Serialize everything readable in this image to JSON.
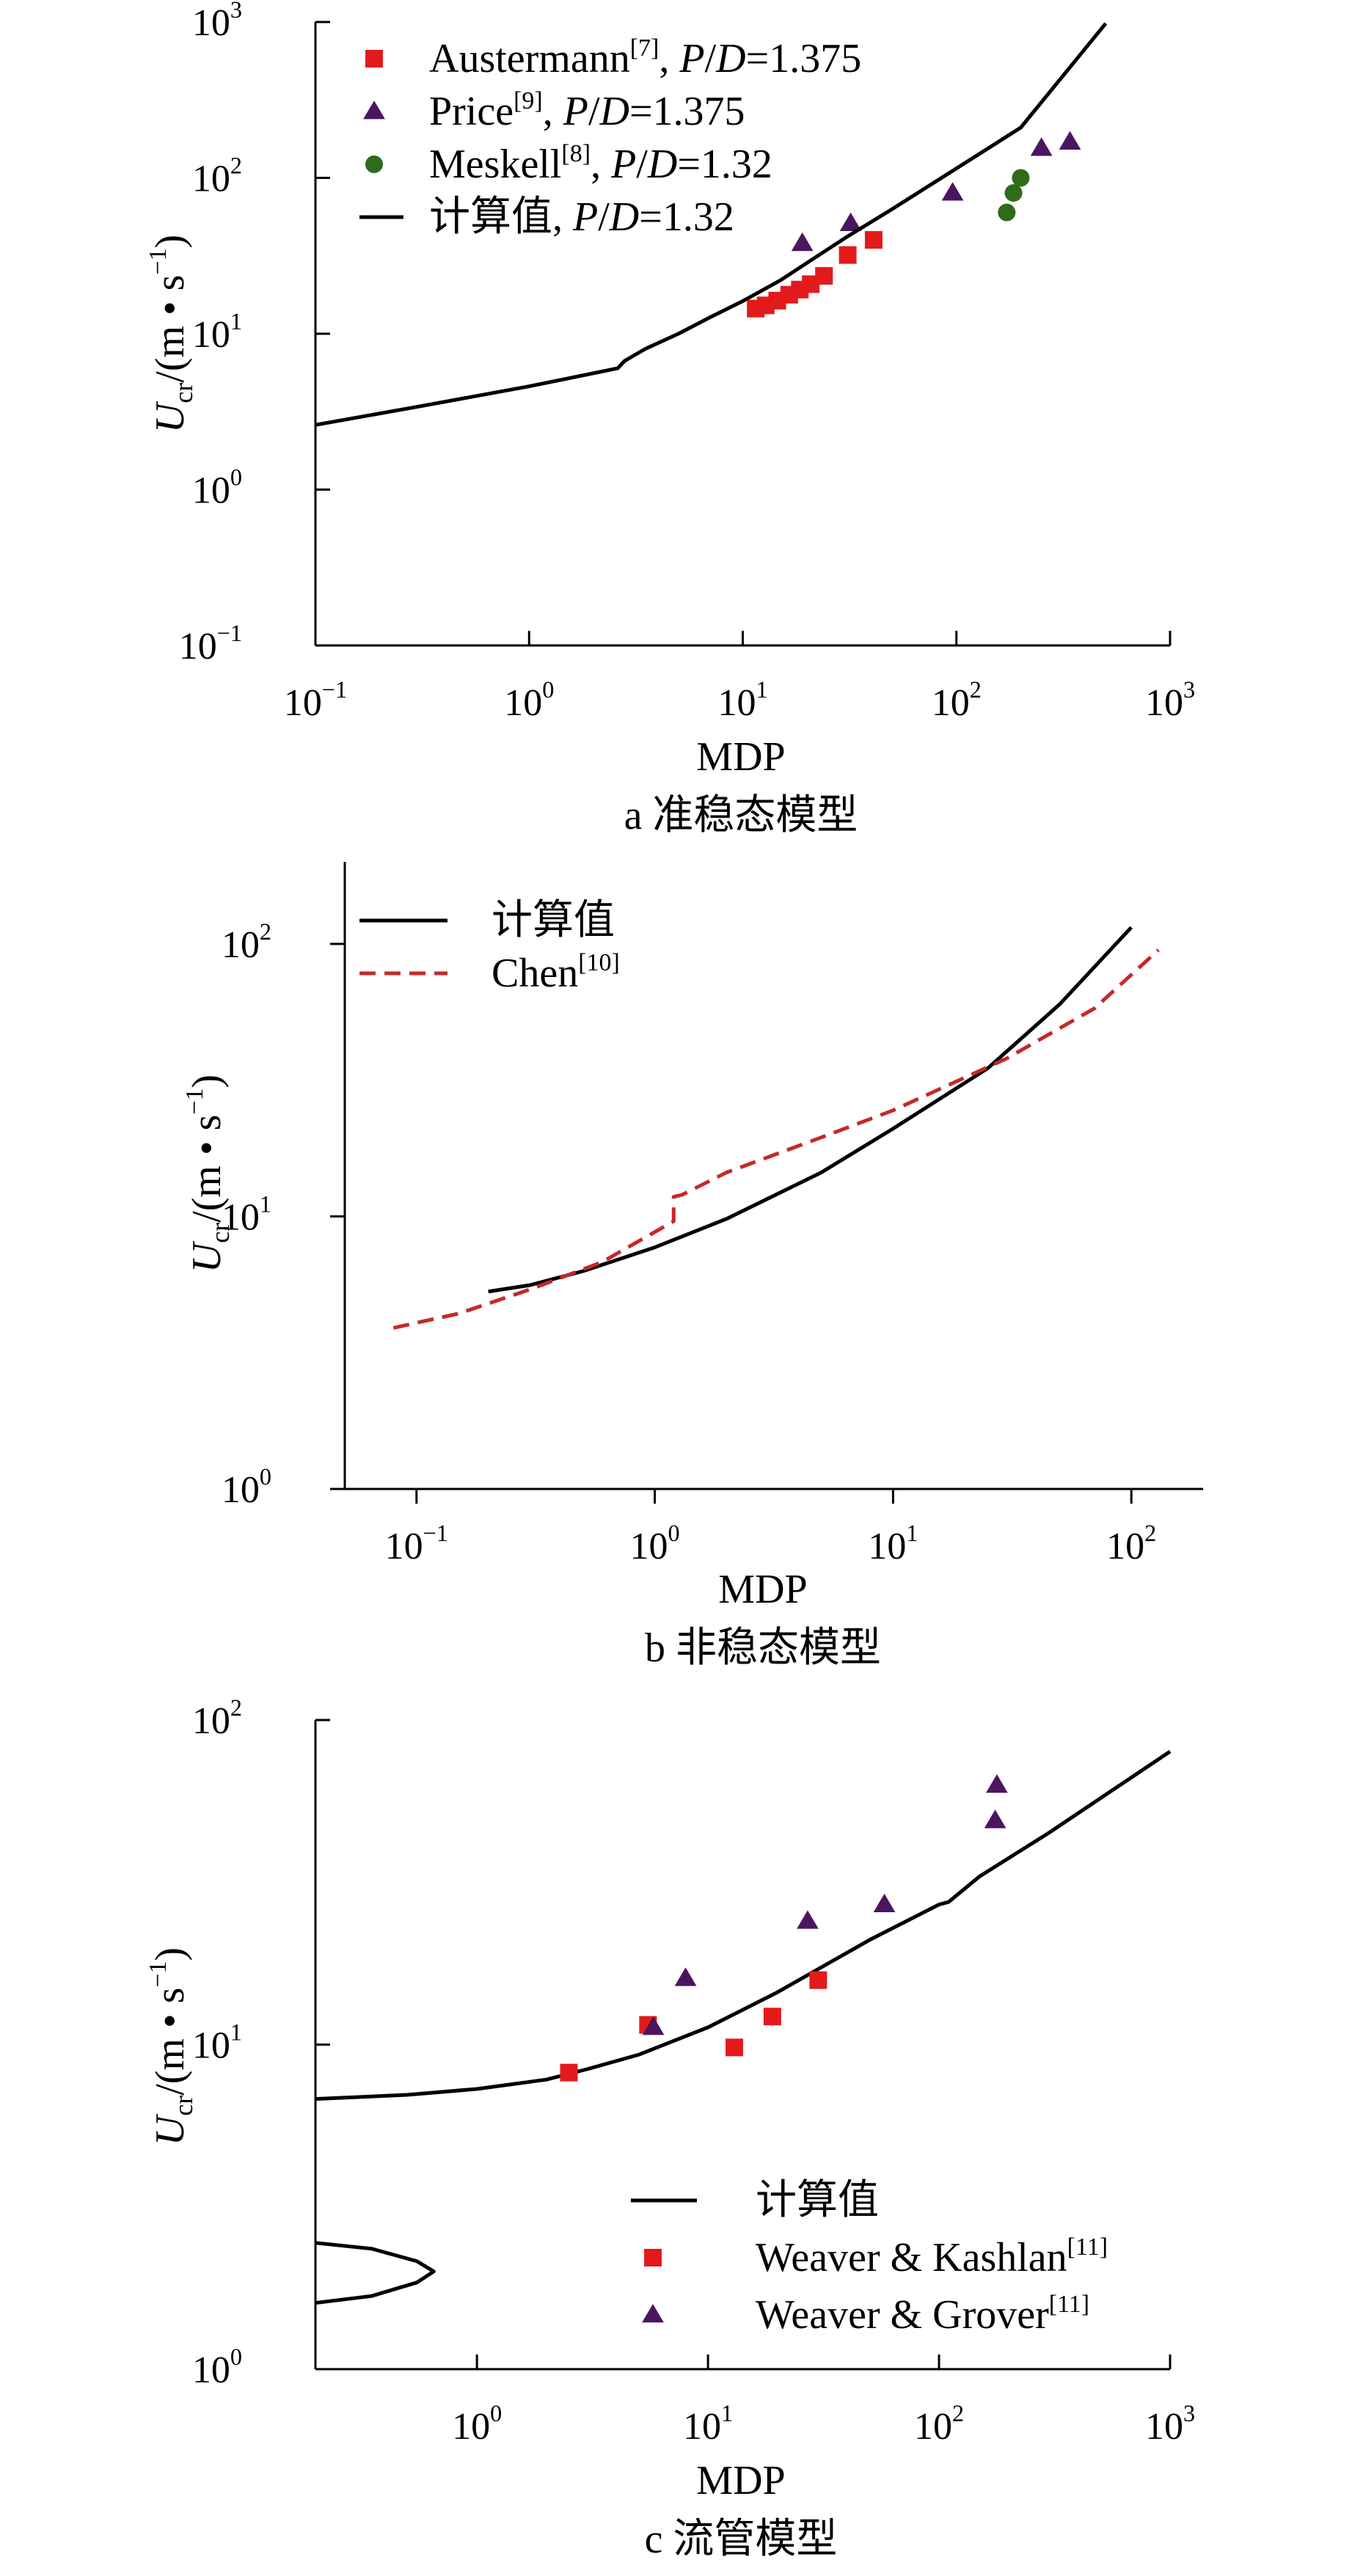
{
  "chart_data": [
    {
      "type": "line",
      "panel_caption": "a  准稳态模型",
      "xlabel": "MDP",
      "ylabel_main": "U",
      "ylabel_sub": "cr",
      "ylabel_rest": "/(m • s",
      "ylabel_sup": "−1",
      "ylabel_close": ")",
      "x_scale": "log",
      "y_scale": "log",
      "xlim": [
        0.1,
        1000
      ],
      "ylim": [
        0.1,
        1000
      ],
      "x_ticks": [
        {
          "base": "10",
          "exp": "−1",
          "value": 0.1
        },
        {
          "base": "10",
          "exp": "0",
          "value": 1
        },
        {
          "base": "10",
          "exp": "1",
          "value": 10
        },
        {
          "base": "10",
          "exp": "2",
          "value": 100
        },
        {
          "base": "10",
          "exp": "3",
          "value": 1000
        }
      ],
      "y_ticks": [
        {
          "base": "10",
          "exp": "−1",
          "value": 0.1
        },
        {
          "base": "10",
          "exp": "0",
          "value": 1
        },
        {
          "base": "10",
          "exp": "1",
          "value": 10
        },
        {
          "base": "10",
          "exp": "2",
          "value": 100
        },
        {
          "base": "10",
          "exp": "3",
          "value": 1000
        }
      ],
      "legend_position": "top-left",
      "series": [
        {
          "legend_main": "Austermann",
          "legend_ref": "[7]",
          "legend_tail": ", P/D=1.375",
          "marker": "square",
          "color": "#e31a1c",
          "x": [
            11.5,
            12.8,
            14.5,
            16.5,
            18.5,
            20.8,
            24,
            31,
            41
          ],
          "y": [
            14.5,
            15.2,
            16.3,
            17.8,
            19.2,
            20.8,
            23.5,
            32,
            40
          ]
        },
        {
          "legend_main": "Price",
          "legend_ref": "[9]",
          "legend_tail": ", P/D=1.375",
          "marker": "triangle",
          "color": "#4b1560",
          "x": [
            19,
            32,
            96,
            250,
            340
          ],
          "y": [
            38,
            51,
            80,
            155,
            170
          ]
        },
        {
          "legend_main": "Meskell",
          "legend_ref": "[8]",
          "legend_tail": ", P/D=1.32",
          "marker": "circle",
          "color": "#2e6b1a",
          "x": [
            172,
            185,
            200
          ],
          "y": [
            60,
            80,
            100
          ]
        },
        {
          "legend_main": "计算值",
          "legend_ref": "",
          "legend_tail": ", P/D=1.32",
          "marker": "line",
          "color": "#000000",
          "x": [
            0.1,
            0.3,
            1,
            2.6,
            2.8,
            3.5,
            5,
            7,
            10,
            15,
            20,
            30,
            50,
            100,
            200,
            500
          ],
          "y": [
            2.6,
            3.4,
            4.6,
            6.0,
            6.7,
            8.0,
            10.0,
            12.7,
            16.2,
            22,
            28.5,
            41,
            63,
            115,
            210,
            980
          ]
        }
      ]
    },
    {
      "type": "line",
      "panel_caption": "b  非稳态模型",
      "xlabel": "MDP",
      "ylabel_main": "U",
      "ylabel_sub": "cr",
      "ylabel_rest": "/(m • s",
      "ylabel_sup": "−1",
      "ylabel_close": ")",
      "x_scale": "log",
      "y_scale": "log",
      "xlim": [
        0.05,
        200
      ],
      "ylim": [
        1,
        200
      ],
      "x_ticks": [
        {
          "base": "10",
          "exp": "−1",
          "value": 0.1
        },
        {
          "base": "10",
          "exp": "0",
          "value": 1
        },
        {
          "base": "10",
          "exp": "1",
          "value": 10
        },
        {
          "base": "10",
          "exp": "2",
          "value": 100
        }
      ],
      "y_ticks": [
        {
          "base": "10",
          "exp": "0",
          "value": 1
        },
        {
          "base": "10",
          "exp": "1",
          "value": 10
        },
        {
          "base": "10",
          "exp": "2",
          "value": 100
        }
      ],
      "legend_position": "top-left",
      "series": [
        {
          "legend_main": "计算值",
          "legend_ref": "",
          "legend_tail": "",
          "marker": "line",
          "color": "#000000",
          "x": [
            0.2,
            0.3,
            0.5,
            1,
            2,
            5,
            10,
            25,
            50,
            100
          ],
          "y": [
            5.3,
            5.6,
            6.3,
            7.7,
            9.8,
            14.5,
            21,
            35,
            60,
            115
          ]
        },
        {
          "legend_main": "Chen",
          "legend_ref": "[10]",
          "legend_tail": "",
          "marker": "dashed",
          "color": "#c62828",
          "x": [
            0.08,
            0.15,
            0.3,
            0.6,
            1.2,
            1.2,
            1.3,
            2,
            5,
            10,
            30,
            70,
            130
          ],
          "y": [
            3.9,
            4.4,
            5.4,
            6.8,
            9.6,
            11.8,
            12.0,
            14.5,
            19.5,
            24.5,
            38,
            58,
            95
          ]
        }
      ]
    },
    {
      "type": "line",
      "panel_caption": "c  流管模型",
      "xlabel": "MDP",
      "ylabel_main": "U",
      "ylabel_sub": "cr",
      "ylabel_rest": "/(m • s",
      "ylabel_sup": "−1",
      "ylabel_close": ")",
      "x_scale": "log",
      "y_scale": "log",
      "xlim": [
        0.2,
        1000
      ],
      "ylim": [
        1,
        100
      ],
      "x_ticks": [
        {
          "base": "10",
          "exp": "0",
          "value": 1
        },
        {
          "base": "10",
          "exp": "1",
          "value": 10
        },
        {
          "base": "10",
          "exp": "2",
          "value": 100
        },
        {
          "base": "10",
          "exp": "3",
          "value": 1000
        }
      ],
      "y_ticks": [
        {
          "base": "10",
          "exp": "0",
          "value": 1
        },
        {
          "base": "10",
          "exp": "1",
          "value": 10
        },
        {
          "base": "10",
          "exp": "2",
          "value": 100
        }
      ],
      "legend_position": "bottom-right",
      "series": [
        {
          "legend_main": "计算值",
          "legend_ref": "",
          "legend_tail": "",
          "marker": "line",
          "color": "#000000",
          "x": [
            0.2,
            0.5,
            1,
            2,
            3,
            5,
            10,
            20,
            50,
            100,
            110,
            150,
            300,
            1000
          ],
          "y": [
            6.8,
            7.0,
            7.3,
            7.8,
            8.4,
            9.3,
            11.3,
            14.5,
            21,
            27,
            27.5,
            33,
            45,
            80
          ]
        },
        {
          "legend_main": "计算值",
          "legend_ref": "",
          "legend_tail": "",
          "marker": "line-nolegend",
          "color": "#000000",
          "x": [
            0.2,
            0.35,
            0.55,
            0.65,
            0.55,
            0.35,
            0.2
          ],
          "y": [
            2.45,
            2.35,
            2.15,
            2.0,
            1.85,
            1.68,
            1.6
          ]
        },
        {
          "legend_main": "Weaver & Kashlan",
          "legend_ref": "[11]",
          "legend_tail": "",
          "marker": "square",
          "color": "#e31a1c",
          "x": [
            2.5,
            5.5,
            13,
            19,
            30
          ],
          "y": [
            8.2,
            11.5,
            9.8,
            12.2,
            15.8
          ]
        },
        {
          "legend_main": "Weaver & Grover",
          "legend_ref": "[11]",
          "legend_tail": "",
          "marker": "triangle",
          "color": "#4b1560",
          "x": [
            5.8,
            8.0,
            27,
            58,
            175,
            178
          ],
          "y": [
            11.3,
            16,
            24,
            27,
            49,
            63
          ]
        }
      ]
    }
  ]
}
